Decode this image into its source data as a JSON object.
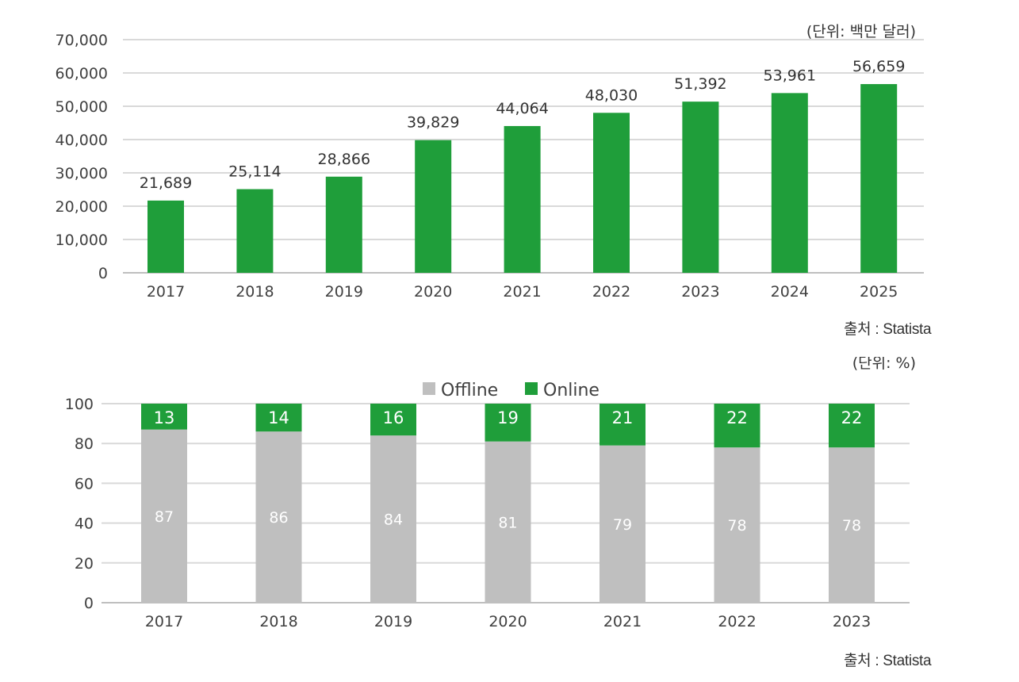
{
  "chart_data": [
    {
      "type": "bar",
      "unit_note": "(단위: 백만 달러)",
      "categories": [
        "2017",
        "2018",
        "2019",
        "2020",
        "2021",
        "2022",
        "2023",
        "2024",
        "2025"
      ],
      "values": [
        21689,
        25114,
        28866,
        39829,
        44064,
        48030,
        51392,
        53961,
        56659
      ],
      "value_labels": [
        "21,689",
        "25,114",
        "28,866",
        "39,829",
        "44,064",
        "48,030",
        "51,392",
        "53,961",
        "56,659"
      ],
      "y_ticks": [
        "0",
        "10,000",
        "20,000",
        "30,000",
        "40,000",
        "50,000",
        "60,000",
        "70,000"
      ],
      "ylim": [
        0,
        70000
      ],
      "color": "#1f9e3a",
      "source": "출처 : Statista"
    },
    {
      "type": "bar",
      "stacked": true,
      "unit_note": "(단위: %)",
      "categories": [
        "2017",
        "2018",
        "2019",
        "2020",
        "2021",
        "2022",
        "2023"
      ],
      "series": [
        {
          "name": "Offline",
          "values": [
            87,
            86,
            84,
            81,
            79,
            78,
            78
          ],
          "color": "#bfbfbf"
        },
        {
          "name": "Online",
          "values": [
            13,
            14,
            16,
            19,
            21,
            22,
            22
          ],
          "color": "#1f9e3a"
        }
      ],
      "y_ticks": [
        "0",
        "20",
        "40",
        "60",
        "80",
        "100"
      ],
      "ylim": [
        0,
        100
      ],
      "legend": "top-center",
      "source": "출처 : Statista"
    }
  ]
}
